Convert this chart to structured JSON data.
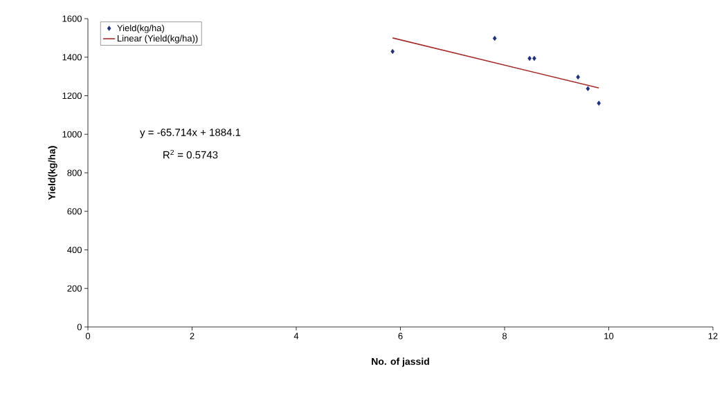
{
  "chart_data": {
    "type": "scatter",
    "xlabel": "No. of jassid",
    "ylabel": "Yield(kg/ha)",
    "xlim": [
      0,
      12
    ],
    "xticks": [
      0,
      2,
      4,
      6,
      8,
      10,
      12
    ],
    "ylim": [
      0,
      1600
    ],
    "yticks": [
      0,
      200,
      400,
      600,
      800,
      1000,
      1200,
      1400,
      1600
    ],
    "series": [
      {
        "name": "Yield(kg/ha)",
        "marker": "diamond",
        "color": "#1f2f7a",
        "x": [
          5.85,
          7.81,
          8.48,
          8.57,
          9.41,
          9.6,
          9.81
        ],
        "values": [
          1430,
          1498,
          1394,
          1394,
          1297,
          1237,
          1161
        ]
      },
      {
        "name": "Linear (Yield(kg/ha))",
        "type": "line",
        "marker": "none",
        "color": "#a52a2a",
        "x": [
          5.85,
          9.81
        ],
        "values": [
          1500,
          1240
        ]
      }
    ],
    "annotations": [
      "y = -65.714x + 1884.1",
      "R$^{2}$ = 0.5743"
    ],
    "legend": "top left",
    "grid": false
  }
}
